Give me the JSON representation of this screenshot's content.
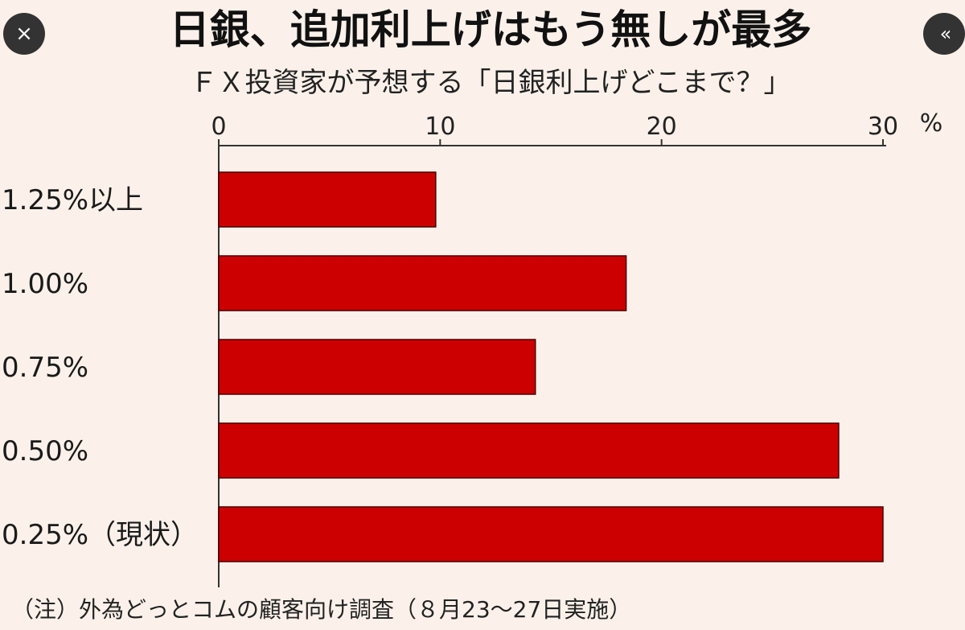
{
  "ui": {
    "close_icon": "×",
    "collapse_icon": "«"
  },
  "title": "日銀、追加利上げはもう無しが最多",
  "subtitle": "ＦＸ投資家が予想する「日銀利上げどこまで？」",
  "note": "（注）外為どっとコムの顧客向け調査（８月23～27日実施）",
  "colors": {
    "bar": "#cc0000",
    "bar_border": "#4a0000",
    "axis": "#333333"
  },
  "chart_data": {
    "type": "bar",
    "orientation": "horizontal",
    "categories": [
      "1.25%以上",
      "1.00%",
      "0.75%",
      "0.50%",
      "0.25%（現状）"
    ],
    "values": [
      9.8,
      18.4,
      14.3,
      28.0,
      30.0
    ],
    "xlim": [
      0,
      30
    ],
    "xticks": [
      0,
      10,
      20,
      30
    ],
    "xlabel": "%",
    "grid": false
  }
}
